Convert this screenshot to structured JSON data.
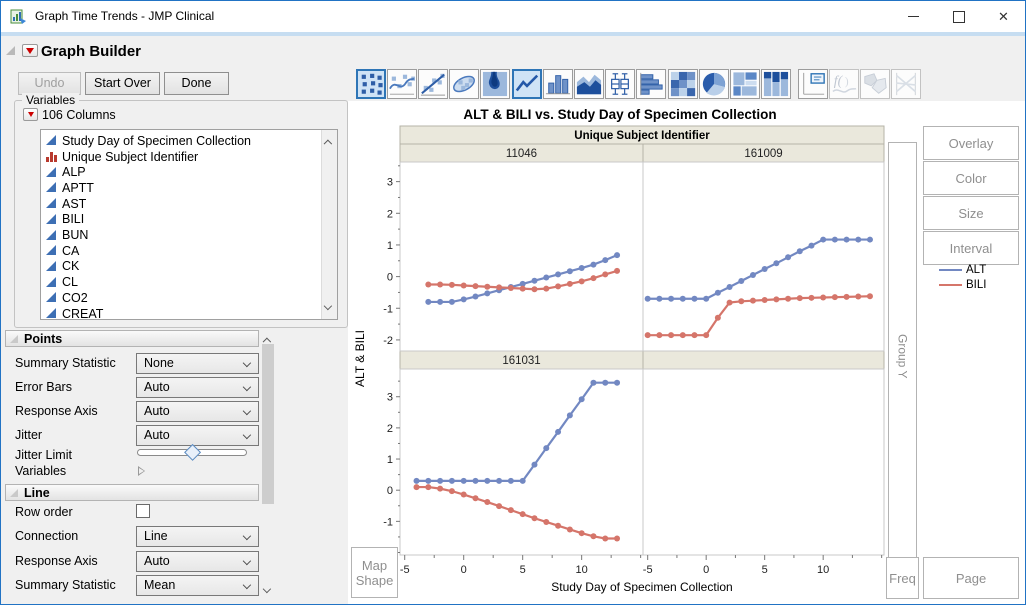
{
  "window": {
    "title": "Graph Time Trends - JMP Clinical"
  },
  "header": {
    "title": "Graph Builder"
  },
  "action_buttons": {
    "undo": "Undo",
    "start_over": "Start Over",
    "done": "Done"
  },
  "variables_panel": {
    "group_label": "Variables",
    "columns_label": "106 Columns",
    "items": [
      {
        "label": "Study Day of Specimen Collection",
        "icon": "continuous"
      },
      {
        "label": "Unique Subject Identifier",
        "icon": "nominal"
      },
      {
        "label": "ALP",
        "icon": "continuous"
      },
      {
        "label": "APTT",
        "icon": "continuous"
      },
      {
        "label": "AST",
        "icon": "continuous"
      },
      {
        "label": "BILI",
        "icon": "continuous"
      },
      {
        "label": "BUN",
        "icon": "continuous"
      },
      {
        "label": "CA",
        "icon": "continuous"
      },
      {
        "label": "CK",
        "icon": "continuous"
      },
      {
        "label": "CL",
        "icon": "continuous"
      },
      {
        "label": "CO2",
        "icon": "continuous"
      },
      {
        "label": "CREAT",
        "icon": "continuous"
      }
    ]
  },
  "points_panel": {
    "title": "Points",
    "rows": [
      {
        "label": "Summary Statistic",
        "control": "dropdown",
        "value": "None"
      },
      {
        "label": "Error Bars",
        "control": "dropdown",
        "value": "Auto"
      },
      {
        "label": "Response Axis",
        "control": "dropdown",
        "value": "Auto"
      },
      {
        "label": "Jitter",
        "control": "dropdown",
        "value": "Auto"
      },
      {
        "label": "Jitter Limit",
        "control": "slider"
      },
      {
        "label": "Variables",
        "control": "disclosure"
      }
    ]
  },
  "line_panel": {
    "title": "Line",
    "rows": [
      {
        "label": "Row order",
        "control": "checkbox",
        "checked": false
      },
      {
        "label": "Connection",
        "control": "dropdown",
        "value": "Line"
      },
      {
        "label": "Response Axis",
        "control": "dropdown",
        "value": "Auto"
      },
      {
        "label": "Summary Statistic",
        "control": "dropdown",
        "value": "Mean"
      }
    ]
  },
  "element_toolbar": [
    {
      "name": "points",
      "selected": true,
      "enabled": true
    },
    {
      "name": "smoother",
      "selected": false,
      "enabled": true
    },
    {
      "name": "line-of-fit",
      "selected": false,
      "enabled": true
    },
    {
      "name": "ellipse",
      "selected": false,
      "enabled": true
    },
    {
      "name": "contour",
      "selected": false,
      "enabled": true
    },
    {
      "name": "line",
      "selected": true,
      "enabled": true
    },
    {
      "name": "bar",
      "selected": false,
      "enabled": true
    },
    {
      "name": "area",
      "selected": false,
      "enabled": true
    },
    {
      "name": "box-plot",
      "selected": false,
      "enabled": true
    },
    {
      "name": "histogram",
      "selected": false,
      "enabled": true
    },
    {
      "name": "heatmap",
      "selected": false,
      "enabled": true
    },
    {
      "name": "pie",
      "selected": false,
      "enabled": true
    },
    {
      "name": "treemap",
      "selected": false,
      "enabled": true
    },
    {
      "name": "mosaic",
      "selected": false,
      "enabled": true
    },
    {
      "name": "caption-box",
      "selected": false,
      "enabled": true
    },
    {
      "name": "formula",
      "selected": false,
      "enabled": false
    },
    {
      "name": "map-shapes",
      "selected": false,
      "enabled": false
    },
    {
      "name": "parallel",
      "selected": false,
      "enabled": false
    }
  ],
  "drop_zones": {
    "overlay": "Overlay",
    "color": "Color",
    "size": "Size",
    "interval": "Interval",
    "group_y": "Group Y",
    "freq": "Freq",
    "page": "Page",
    "map_shape_line1": "Map",
    "map_shape_line2": "Shape"
  },
  "legend": [
    {
      "label": "ALT",
      "color": "#7288c2"
    },
    {
      "label": "BILI",
      "color": "#d5756a"
    }
  ],
  "chart_data": {
    "type": "line",
    "title": "ALT & BILI vs. Study Day of Specimen Collection",
    "group_label": "Unique Subject Identifier",
    "xlabel": "Study Day of Specimen Collection",
    "ylabel": "ALT & BILI",
    "x_ticks": [
      -5,
      0,
      5,
      10
    ],
    "y_ticks": [
      -2,
      -1,
      0,
      1,
      2,
      3
    ],
    "xlim": [
      -5.4,
      15.2
    ],
    "ylim": [
      -2.3,
      3.9
    ],
    "grid": false,
    "legend_position": "right",
    "series_colors": {
      "ALT": "#7288c2",
      "BILI": "#d5756a"
    },
    "panels": [
      {
        "subject": "11046",
        "row": 0,
        "col": 0,
        "series": [
          {
            "name": "ALT",
            "x": [
              -3,
              -2,
              -1,
              0,
              1,
              2,
              3,
              4,
              5,
              6,
              7,
              8,
              9,
              10,
              11,
              12,
              13
            ],
            "y": [
              -0.8,
              -0.8,
              -0.8,
              -0.72,
              -0.63,
              -0.53,
              -0.43,
              -0.33,
              -0.23,
              -0.13,
              -0.03,
              0.07,
              0.17,
              0.27,
              0.38,
              0.52,
              0.68
            ]
          },
          {
            "name": "BILI",
            "x": [
              -3,
              -2,
              -1,
              0,
              1,
              2,
              3,
              4,
              5,
              6,
              7,
              8,
              9,
              10,
              11,
              12,
              13
            ],
            "y": [
              -0.25,
              -0.25,
              -0.26,
              -0.28,
              -0.3,
              -0.32,
              -0.34,
              -0.36,
              -0.38,
              -0.4,
              -0.38,
              -0.31,
              -0.23,
              -0.15,
              -0.05,
              0.07,
              0.18
            ]
          }
        ]
      },
      {
        "subject": "161009",
        "row": 0,
        "col": 1,
        "series": [
          {
            "name": "ALT",
            "x": [
              -5,
              -4,
              -3,
              -2,
              -1,
              0,
              1,
              2,
              3,
              4,
              5,
              6,
              7,
              8,
              9,
              10,
              11,
              12,
              13,
              14
            ],
            "y": [
              -0.7,
              -0.7,
              -0.7,
              -0.7,
              -0.7,
              -0.7,
              -0.51,
              -0.33,
              -0.14,
              0.05,
              0.24,
              0.42,
              0.61,
              0.8,
              0.98,
              1.17,
              1.17,
              1.17,
              1.17,
              1.17
            ]
          },
          {
            "name": "BILI",
            "x": [
              -5,
              -4,
              -3,
              -2,
              -1,
              0,
              1,
              2,
              3,
              4,
              5,
              6,
              7,
              8,
              9,
              10,
              11,
              12,
              13,
              14
            ],
            "y": [
              -1.85,
              -1.85,
              -1.85,
              -1.85,
              -1.85,
              -1.85,
              -1.3,
              -0.82,
              -0.78,
              -0.76,
              -0.74,
              -0.72,
              -0.7,
              -0.68,
              -0.67,
              -0.66,
              -0.65,
              -0.64,
              -0.63,
              -0.62
            ]
          }
        ]
      },
      {
        "subject": "161031",
        "row": 1,
        "col": 0,
        "series": [
          {
            "name": "ALT",
            "x": [
              -4,
              -3,
              -2,
              -1,
              0,
              1,
              2,
              3,
              4,
              5,
              6,
              7,
              8,
              9,
              10,
              11,
              12,
              13
            ],
            "y": [
              0.3,
              0.3,
              0.3,
              0.3,
              0.3,
              0.3,
              0.3,
              0.3,
              0.3,
              0.3,
              0.82,
              1.35,
              1.87,
              2.4,
              2.92,
              3.45,
              3.45,
              3.45
            ]
          },
          {
            "name": "BILI",
            "x": [
              -4,
              -3,
              -2,
              -1,
              0,
              1,
              2,
              3,
              4,
              5,
              6,
              7,
              8,
              9,
              10,
              11,
              12,
              13
            ],
            "y": [
              0.1,
              0.1,
              0.05,
              -0.03,
              -0.14,
              -0.26,
              -0.38,
              -0.51,
              -0.64,
              -0.77,
              -0.9,
              -1.02,
              -1.14,
              -1.26,
              -1.38,
              -1.48,
              -1.55,
              -1.55
            ]
          }
        ]
      },
      {
        "subject": "",
        "row": 1,
        "col": 1,
        "series": []
      }
    ]
  }
}
